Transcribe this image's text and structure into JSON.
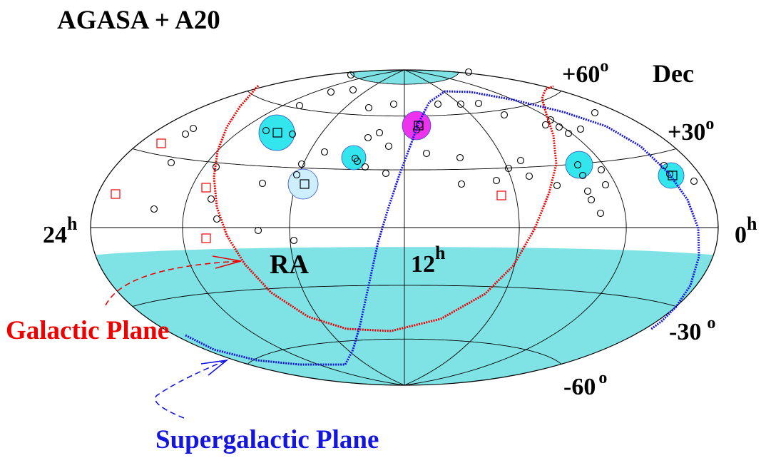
{
  "title": "AGASA + A20",
  "labels": {
    "dec_title": "Dec",
    "ra_title": "RA",
    "ra_left_base": "24",
    "ra_left_sup": "h",
    "ra_right_base": "0",
    "ra_right_sup": "h",
    "ra_mid_base": "12",
    "ra_mid_sup": "h",
    "dec_p60_base": "+60",
    "dec_p60_sup": "o",
    "dec_p30_base": "+30",
    "dec_p30_sup": "o",
    "dec_m30_base": "-30",
    "dec_m30_sup": "o",
    "dec_m60_base": "-60",
    "dec_m60_sup": "o",
    "galactic_plane": "Galactic Plane",
    "supergalactic_plane": "Supergalactic Plane"
  },
  "colors": {
    "galactic": "#ee0000",
    "supergalactic": "#1515e0",
    "unseen_sky": "#7fe3e6",
    "cluster": "#33e6ee",
    "triplet": "#ee33ee",
    "clustering_region_faint": "#cdeefc",
    "events": "#000000",
    "grid": "#000000"
  },
  "map": {
    "projection": "Hammer-Aitoff",
    "ra_range_hours": [
      0,
      24
    ],
    "dec_range_deg": [
      -90,
      90
    ],
    "unseen_declination_limits_deg": [
      -10,
      80
    ]
  }
}
